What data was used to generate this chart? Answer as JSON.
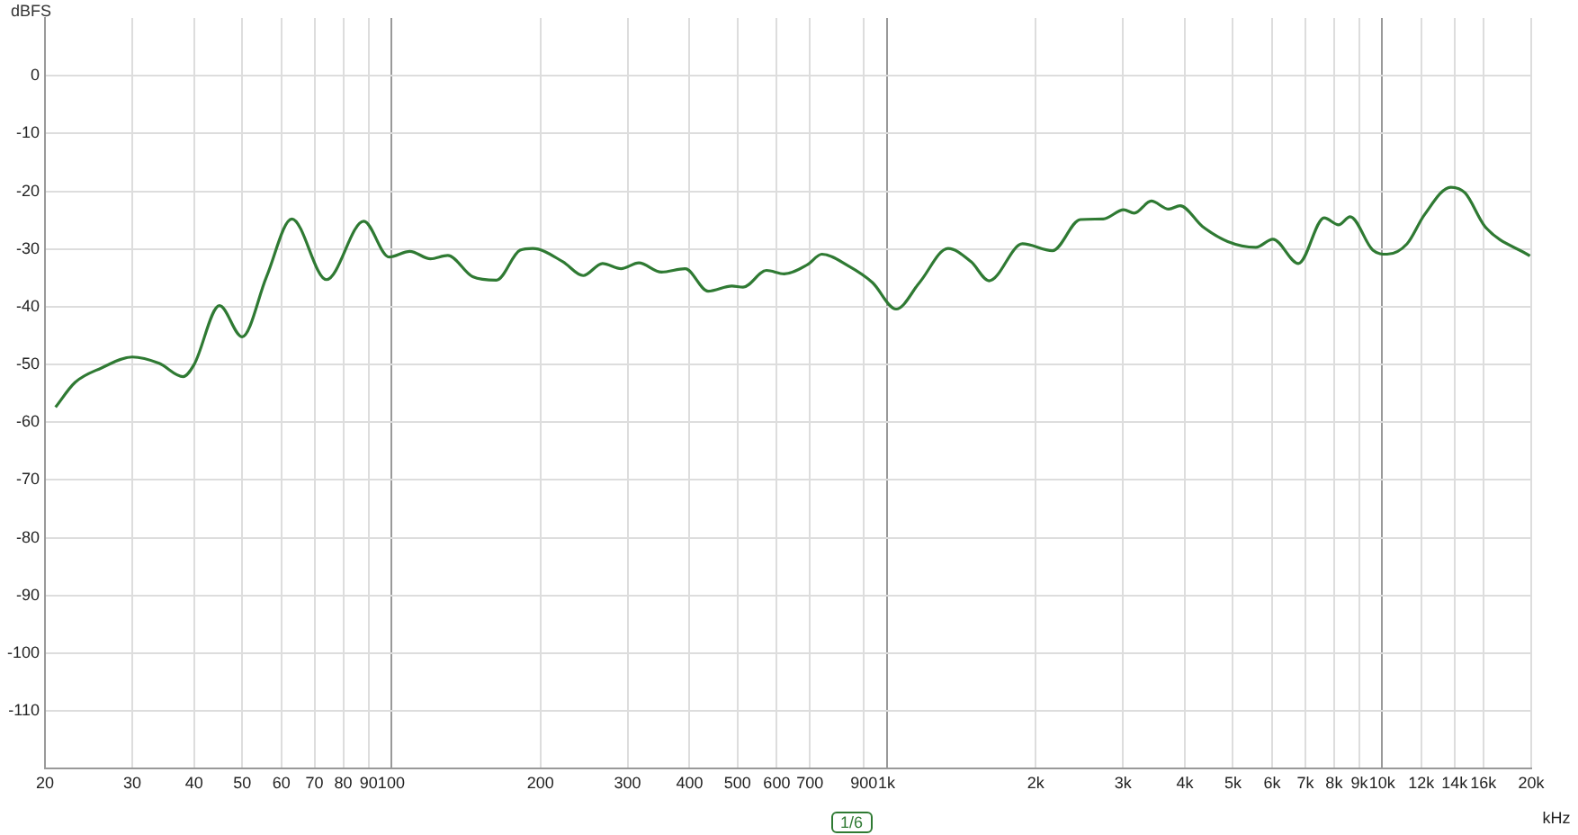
{
  "chart_data": {
    "type": "line",
    "ylabel": "dBFS",
    "annotations": [
      "1/6"
    ],
    "x": [
      21,
      23,
      26,
      30,
      34,
      38,
      40,
      45,
      50,
      56,
      63,
      74,
      88,
      99,
      109,
      120,
      130,
      146,
      163,
      182,
      193,
      222,
      244,
      267,
      291,
      316,
      351,
      392,
      436,
      487,
      513,
      572,
      621,
      692,
      740,
      836,
      936,
      1045,
      1165,
      1330,
      1480,
      1610,
      1880,
      2160,
      2460,
      2735,
      3010,
      3160,
      3420,
      3710,
      3910,
      4340,
      4880,
      5560,
      6020,
      6780,
      7640,
      8170,
      8620,
      9580,
      10240,
      11230,
      12170,
      13760,
      14710,
      16130,
      19880
    ],
    "series": [
      {
        "color": "#2f7a33",
        "values": [
          -57.4,
          -53.1,
          -50.6,
          -48.7,
          -49.8,
          -52.1,
          -50,
          -39.8,
          -45.2,
          -34.8,
          -24.8,
          -35.3,
          -25.2,
          -31.4,
          -30.4,
          -31.7,
          -31.1,
          -34.8,
          -35.4,
          -30.2,
          -29.9,
          -32.2,
          -34.6,
          -32.5,
          -33.4,
          -32.4,
          -34,
          -33.4,
          -37.3,
          -36.4,
          -36.6,
          -33.7,
          -34.3,
          -32.7,
          -30.9,
          -32.9,
          -35.8,
          -40.4,
          -35.8,
          -29.9,
          -32.2,
          -35.5,
          -29.1,
          -30.3,
          -24.9,
          -24.8,
          -23.2,
          -23.8,
          -21.7,
          -23.1,
          -22.5,
          -26.1,
          -28.7,
          -29.7,
          -28.3,
          -32.5,
          -24.6,
          -25.8,
          -24.4,
          -30.2,
          -30.9,
          -29.1,
          -24.1,
          -19.3,
          -20.3,
          -26.1,
          -31.2
        ]
      }
    ],
    "log": "x",
    "xlim": [
      20,
      20000
    ],
    "xticks": [
      20,
      30,
      40,
      50,
      60,
      70,
      80,
      90,
      100,
      200,
      300,
      400,
      500,
      600,
      700,
      900,
      {
        "value": 1000,
        "label": "1k"
      },
      {
        "value": 2000,
        "label": "2k"
      },
      {
        "value": 3000,
        "label": "3k"
      },
      {
        "value": 4000,
        "label": "4k"
      },
      {
        "value": 5000,
        "label": "5k"
      },
      {
        "value": 6000,
        "label": "6k"
      },
      {
        "value": 7000,
        "label": "7k"
      },
      {
        "value": 8000,
        "label": "8k"
      },
      {
        "value": 9000,
        "label": "9k"
      },
      {
        "value": 10000,
        "label": "10k"
      },
      {
        "value": 12000,
        "label": "12k"
      },
      {
        "value": 14000,
        "label": "14k"
      },
      {
        "value": 16000,
        "label": "16k"
      },
      {
        "value": 20000,
        "label": "20k"
      }
    ],
    "xlabel": "kHz",
    "ylim": [
      -120,
      10
    ],
    "yticks": [
      0,
      -10,
      -20,
      -30,
      -40,
      -50,
      -60,
      -70,
      -80,
      -90,
      -100,
      -110
    ],
    "grid": true,
    "legend": false,
    "marker": "none",
    "line_style": "solid"
  }
}
